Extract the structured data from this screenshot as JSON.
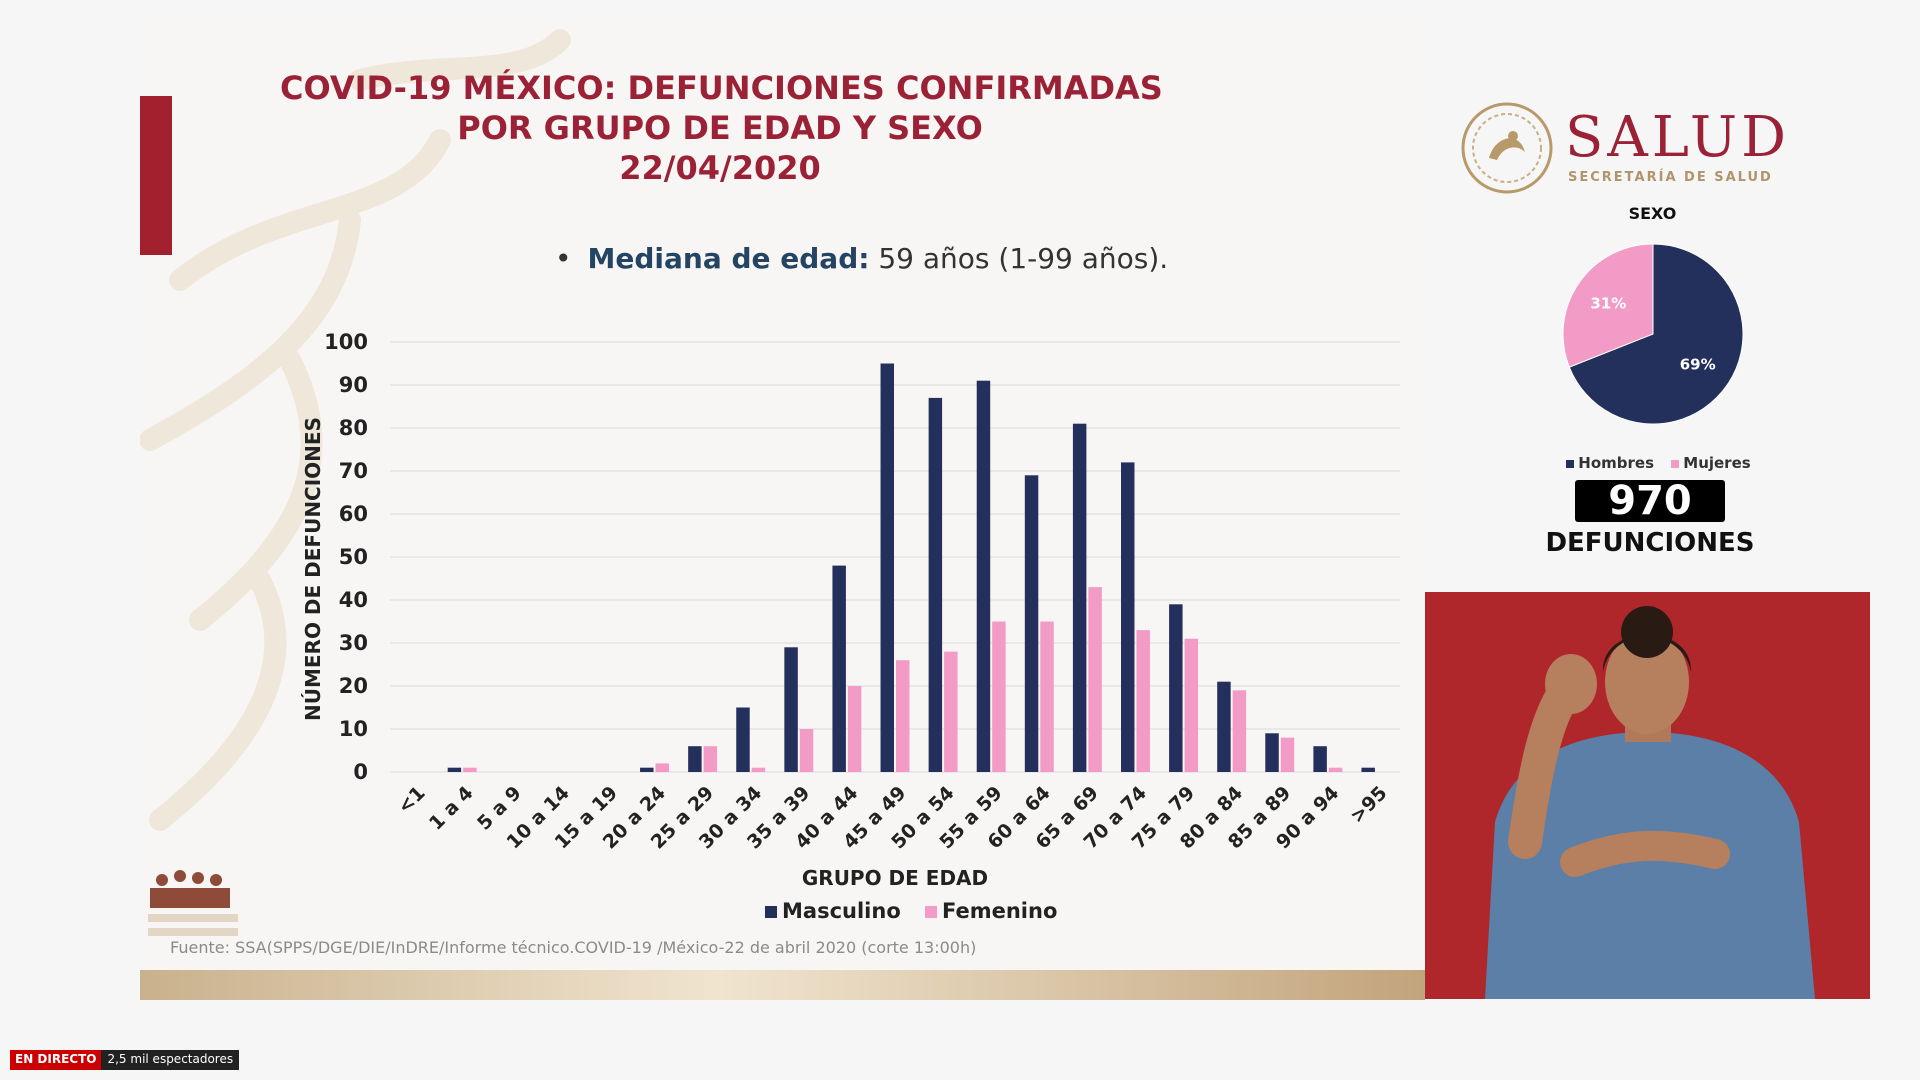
{
  "slide": {
    "title_lines": [
      "COVID-19 MÉXICO: DEFUNCIONES CONFIRMADAS",
      "POR GRUPO DE EDAD Y SEXO",
      "22/04/2020"
    ],
    "median_label": "Mediana de edad:",
    "median_value": " 59 años (1-99 años).",
    "source": "Fuente: SSA(SPPS/DGE/DIE/InDRE/Informe técnico.COVID-19 /México-22 de abril 2020 (corte 13:00h)"
  },
  "colors": {
    "masculino": "#23305c",
    "femenino": "#f29bc6",
    "accent": "#9b2236"
  },
  "chart_data": [
    {
      "type": "bar",
      "xlabel": "GRUPO DE EDAD",
      "ylabel": "NÚMERO DE DEFUNCIONES",
      "ylim": [
        0,
        100
      ],
      "yticks": [
        0,
        10,
        20,
        30,
        40,
        50,
        60,
        70,
        80,
        90,
        100
      ],
      "grid": true,
      "legend": "bottom",
      "categories": [
        "<1",
        "1 a 4",
        "5 a 9",
        "10 a 14",
        "15 a 19",
        "20 a 24",
        "25 a 29",
        "30 a 34",
        "35 a 39",
        "40 a 44",
        "45 a 49",
        "50 a 54",
        "55 a 59",
        "60 a 64",
        "65 a 69",
        "70 a 74",
        "75 a 79",
        "80 a 84",
        "85 a 89",
        "90 a 94",
        ">95"
      ],
      "series": [
        {
          "name": "Masculino",
          "values": [
            0,
            1,
            0,
            0,
            0,
            1,
            6,
            15,
            29,
            48,
            95,
            87,
            91,
            69,
            81,
            72,
            39,
            21,
            9,
            6,
            1
          ]
        },
        {
          "name": "Femenino",
          "values": [
            0,
            1,
            0,
            0,
            0,
            2,
            6,
            1,
            10,
            20,
            26,
            28,
            35,
            35,
            43,
            33,
            31,
            19,
            8,
            1,
            0
          ]
        }
      ]
    },
    {
      "type": "pie",
      "title": "SEXO",
      "legend": "bottom",
      "slices": [
        {
          "name": "Hombres",
          "value": 69,
          "label": "69%"
        },
        {
          "name": "Mujeres",
          "value": 31,
          "label": "31%"
        }
      ]
    }
  ],
  "panel": {
    "brand": "SALUD",
    "brand_sub": "SECRETARÍA DE SALUD",
    "total": "970",
    "total_label": "DEFUNCIONES"
  },
  "stream": {
    "live_label": "EN DIRECTO",
    "viewers": "2,5 mil espectadores"
  }
}
